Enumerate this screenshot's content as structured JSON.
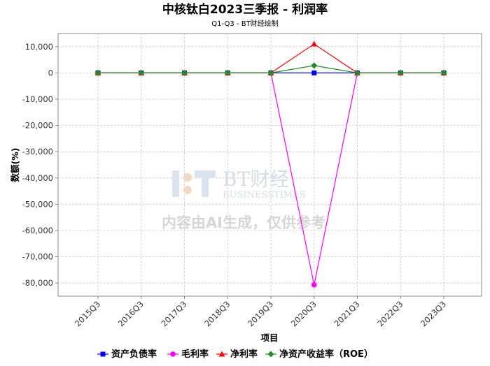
{
  "chart_data": {
    "type": "line",
    "title": "中核钛白2023三季报 - 利润率",
    "subtitle": "Q1-Q3 - BT财经绘制",
    "xlabel": "项目",
    "ylabel": "数额(%)",
    "categories": [
      "2015Q3",
      "2016Q3",
      "2017Q3",
      "2018Q3",
      "2019Q3",
      "2020Q3",
      "2021Q3",
      "2022Q3",
      "2023Q3"
    ],
    "ylim": [
      -85000,
      15000
    ],
    "yticks": [
      10000,
      0,
      -10000,
      -20000,
      -30000,
      -40000,
      -50000,
      -60000,
      -70000,
      -80000
    ],
    "ytick_labels": [
      "10,000",
      "0",
      "-10,000",
      "-20,000",
      "-30,000",
      "-40,000",
      "-50,000",
      "-60,000",
      "-70,000",
      "-80,000"
    ],
    "grid": true,
    "legend_position": "bottom",
    "series": [
      {
        "name": "资产负债率",
        "color": "#0000ff",
        "marker": "square",
        "values": [
          0,
          0,
          0,
          0,
          0,
          0,
          0,
          0,
          0
        ]
      },
      {
        "name": "毛利率",
        "color": "#ff00ff",
        "marker": "circle",
        "values": [
          0,
          0,
          0,
          0,
          0,
          -80700,
          0,
          0,
          0
        ]
      },
      {
        "name": "净利率",
        "color": "#ff0000",
        "marker": "triangle",
        "values": [
          0,
          0,
          0,
          0,
          0,
          11000,
          0,
          0,
          0
        ]
      },
      {
        "name": "净资产收益率（ROE）",
        "color": "#228b22",
        "marker": "diamond",
        "values": [
          0,
          0,
          0,
          0,
          0,
          2800,
          0,
          0,
          0
        ]
      }
    ]
  },
  "watermark": {
    "brand": "BT财经",
    "brand_en": "BUSINESSTIMES",
    "notice": "内容由AI生成，仅供参考"
  }
}
